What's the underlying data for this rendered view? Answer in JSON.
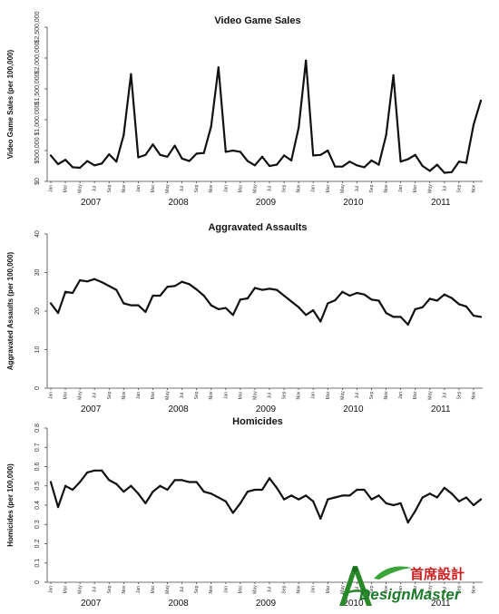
{
  "chart_data": [
    {
      "type": "line",
      "title": "Video Game Sales",
      "ylabel": "Video Game Sales (per 100,000)",
      "xlabel": "",
      "ylim": [
        0,
        2500000
      ],
      "yticks": [
        0,
        500000,
        1000000,
        1500000,
        2000000,
        2500000
      ],
      "ytick_labels": [
        "$0",
        "$500,000",
        "$1,000,000",
        "$1,500,000",
        "$2,000,000",
        "$2,500,000"
      ],
      "month_labels": [
        "Jan",
        "Mar",
        "May",
        "Jul",
        "Sep",
        "Nov"
      ],
      "years": [
        "2007",
        "2008",
        "2009",
        "2010",
        "2011"
      ],
      "values": [
        420000,
        280000,
        350000,
        230000,
        220000,
        330000,
        260000,
        290000,
        440000,
        320000,
        750000,
        1740000,
        390000,
        430000,
        600000,
        430000,
        400000,
        580000,
        370000,
        330000,
        450000,
        460000,
        890000,
        1850000,
        480000,
        500000,
        480000,
        330000,
        260000,
        400000,
        250000,
        270000,
        420000,
        340000,
        870000,
        1960000,
        420000,
        430000,
        500000,
        240000,
        240000,
        320000,
        260000,
        230000,
        340000,
        270000,
        750000,
        1720000,
        320000,
        360000,
        430000,
        250000,
        170000,
        270000,
        140000,
        150000,
        320000,
        300000,
        920000,
        1310000
      ]
    },
    {
      "type": "line",
      "title": "Aggravated Assaults",
      "ylabel": "Aggravated Assaults (per 100,000)",
      "xlabel": "",
      "ylim": [
        0,
        40
      ],
      "yticks": [
        0,
        10,
        20,
        30,
        40
      ],
      "ytick_labels": [
        "0",
        "10",
        "20",
        "30",
        "40"
      ],
      "month_labels": [
        "Jan",
        "Mar",
        "May",
        "Jul",
        "Sep",
        "Nov"
      ],
      "years": [
        "2007",
        "2008",
        "2009",
        "2010",
        "2011"
      ],
      "values": [
        22,
        19.5,
        25,
        24.7,
        28,
        27.7,
        28.3,
        27.5,
        26.5,
        25.5,
        22,
        21.5,
        21.5,
        19.8,
        24,
        24,
        26.3,
        26.5,
        27.6,
        27,
        25.6,
        24,
        21.5,
        20.5,
        20.8,
        19,
        23,
        23.3,
        26,
        25.5,
        25.8,
        25.5,
        24,
        22.5,
        21,
        19,
        20.2,
        17.3,
        22,
        22.8,
        25,
        24,
        24.7,
        24.3,
        23,
        22.7,
        19.5,
        18.5,
        18.5,
        16.5,
        20.5,
        21,
        23.2,
        22.7,
        24.3,
        23.4,
        21.8,
        21.2,
        18.8,
        18.5
      ]
    },
    {
      "type": "line",
      "title": "Homicides",
      "ylabel": "Homicides (per 100,000)",
      "xlabel": "",
      "ylim": [
        0,
        0.8
      ],
      "yticks": [
        0,
        0.1,
        0.2,
        0.3,
        0.4,
        0.5,
        0.6,
        0.7,
        0.8
      ],
      "ytick_labels": [
        "0",
        "0.1",
        "0.2",
        "0.3",
        "0.4",
        "0.5",
        "0.6",
        "0.7",
        "0.8"
      ],
      "month_labels": [
        "Jan",
        "Mar",
        "May",
        "Jul",
        "Sep",
        "Nov"
      ],
      "years": [
        "2007",
        "2008",
        "2009",
        "2010",
        "2011"
      ],
      "values": [
        0.52,
        0.39,
        0.5,
        0.48,
        0.52,
        0.57,
        0.58,
        0.58,
        0.53,
        0.51,
        0.47,
        0.5,
        0.46,
        0.41,
        0.47,
        0.5,
        0.48,
        0.53,
        0.53,
        0.52,
        0.52,
        0.47,
        0.46,
        0.44,
        0.42,
        0.36,
        0.41,
        0.47,
        0.48,
        0.48,
        0.54,
        0.49,
        0.43,
        0.45,
        0.43,
        0.45,
        0.42,
        0.33,
        0.43,
        0.44,
        0.45,
        0.45,
        0.48,
        0.48,
        0.43,
        0.45,
        0.41,
        0.4,
        0.41,
        0.31,
        0.37,
        0.44,
        0.46,
        0.44,
        0.49,
        0.46,
        0.42,
        0.44,
        0.4,
        0.43
      ]
    }
  ],
  "watermark": {
    "cn_text": "首席設計",
    "en_text": "DesignMaster",
    "colors": {
      "green": "#2a8a2a",
      "red": "#cc1e1e"
    }
  }
}
